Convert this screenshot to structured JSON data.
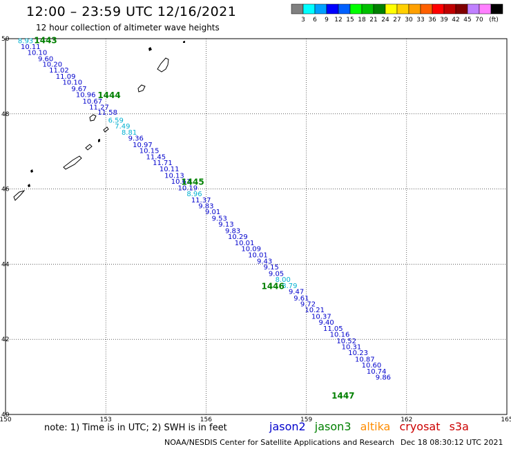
{
  "title": "12:00 – 23:59 UTC 12/16/2021",
  "subtitle": "12 hour collection of altimeter wave heights",
  "colorbar": {
    "colors": [
      "#808080",
      "#00ffff",
      "#00a0ff",
      "#0000ff",
      "#0060ff",
      "#00ff00",
      "#00c000",
      "#008000",
      "#ffff00",
      "#ffd000",
      "#ffa000",
      "#ff6000",
      "#ff0000",
      "#c00000",
      "#800000",
      "#c080ff",
      "#ff80ff",
      "#000000"
    ],
    "labels": [
      "3",
      "6",
      "9",
      "12",
      "15",
      "18",
      "21",
      "24",
      "27",
      "30",
      "33",
      "36",
      "39",
      "42",
      "45",
      "70"
    ],
    "unit": "(ft)"
  },
  "axes": {
    "lon_ticks": [
      "150",
      "153",
      "156",
      "159",
      "162",
      "165"
    ],
    "lat_ticks": [
      "50",
      "48",
      "46",
      "44",
      "42",
      "40"
    ]
  },
  "note": "note:  1) Time is in UTC; 2) SWH is in feet",
  "satellites": [
    {
      "name": "jason2",
      "color": "#0000cc"
    },
    {
      "name": "jason3",
      "color": "#008000"
    },
    {
      "name": "altika",
      "color": "#ff8c00"
    },
    {
      "name": "cryosat",
      "color": "#cc0000"
    },
    {
      "name": "s3a",
      "color": "#cc0000"
    }
  ],
  "credit": "NOAA/NESDIS Center for Satellite Applications and Research",
  "timestamp": "Dec 18 08:30:12 UTC 2021",
  "track_colors": {
    "blue": "#0000cc",
    "cyan": "#00b0d0",
    "green": "#008000"
  },
  "times": [
    {
      "label": "1443",
      "lon": 151.2,
      "lat": 49.95
    },
    {
      "label": "1444",
      "lon": 153.1,
      "lat": 48.49
    },
    {
      "label": "1445",
      "lon": 155.6,
      "lat": 46.19
    },
    {
      "label": "1446",
      "lon": 158.0,
      "lat": 43.41
    },
    {
      "label": "1447",
      "lon": 160.1,
      "lat": 40.5
    }
  ],
  "wave_heights": [
    {
      "v": "8.93",
      "lon": 150.6,
      "lat": 49.95,
      "c": "cyan"
    },
    {
      "v": "10.11",
      "lon": 150.75,
      "lat": 49.8,
      "c": "blue"
    },
    {
      "v": "10.10",
      "lon": 150.95,
      "lat": 49.64,
      "c": "blue"
    },
    {
      "v": "9.60",
      "lon": 151.2,
      "lat": 49.48,
      "c": "blue"
    },
    {
      "v": "10.20",
      "lon": 151.4,
      "lat": 49.33,
      "c": "blue"
    },
    {
      "v": "11.02",
      "lon": 151.6,
      "lat": 49.17,
      "c": "blue"
    },
    {
      "v": "11.09",
      "lon": 151.8,
      "lat": 49.01,
      "c": "blue"
    },
    {
      "v": "10.10",
      "lon": 152.0,
      "lat": 48.85,
      "c": "blue"
    },
    {
      "v": "9.67",
      "lon": 152.2,
      "lat": 48.68,
      "c": "blue"
    },
    {
      "v": "10.96",
      "lon": 152.4,
      "lat": 48.52,
      "c": "blue"
    },
    {
      "v": "10.67",
      "lon": 152.6,
      "lat": 48.35,
      "c": "blue"
    },
    {
      "v": "11.27",
      "lon": 152.8,
      "lat": 48.19,
      "c": "blue"
    },
    {
      "v": "11.58",
      "lon": 153.05,
      "lat": 48.05,
      "c": "blue"
    },
    {
      "v": "6.59",
      "lon": 153.3,
      "lat": 47.84,
      "c": "cyan"
    },
    {
      "v": "7.49",
      "lon": 153.5,
      "lat": 47.68,
      "c": "cyan"
    },
    {
      "v": "8.81",
      "lon": 153.7,
      "lat": 47.52,
      "c": "cyan"
    },
    {
      "v": "9.36",
      "lon": 153.9,
      "lat": 47.36,
      "c": "blue"
    },
    {
      "v": "10.97",
      "lon": 154.1,
      "lat": 47.19,
      "c": "blue"
    },
    {
      "v": "10.15",
      "lon": 154.3,
      "lat": 47.03,
      "c": "blue"
    },
    {
      "v": "11.45",
      "lon": 154.5,
      "lat": 46.87,
      "c": "blue"
    },
    {
      "v": "11.71",
      "lon": 154.7,
      "lat": 46.71,
      "c": "blue"
    },
    {
      "v": "10.11",
      "lon": 154.9,
      "lat": 46.54,
      "c": "blue"
    },
    {
      "v": "10.13",
      "lon": 155.05,
      "lat": 46.37,
      "c": "blue"
    },
    {
      "v": "10.63",
      "lon": 155.25,
      "lat": 46.21,
      "c": "blue"
    },
    {
      "v": "10.19",
      "lon": 155.45,
      "lat": 46.04,
      "c": "blue"
    },
    {
      "v": "8.96",
      "lon": 155.65,
      "lat": 45.88,
      "c": "cyan"
    },
    {
      "v": "11.37",
      "lon": 155.85,
      "lat": 45.72,
      "c": "blue"
    },
    {
      "v": "9.83",
      "lon": 156.0,
      "lat": 45.56,
      "c": "blue"
    },
    {
      "v": "9.01",
      "lon": 156.2,
      "lat": 45.4,
      "c": "blue"
    },
    {
      "v": "9.53",
      "lon": 156.4,
      "lat": 45.23,
      "c": "blue"
    },
    {
      "v": "9.13",
      "lon": 156.6,
      "lat": 45.07,
      "c": "blue"
    },
    {
      "v": "9.83",
      "lon": 156.8,
      "lat": 44.9,
      "c": "blue"
    },
    {
      "v": "10.29",
      "lon": 156.95,
      "lat": 44.74,
      "c": "blue"
    },
    {
      "v": "10.01",
      "lon": 157.15,
      "lat": 44.58,
      "c": "blue"
    },
    {
      "v": "10.09",
      "lon": 157.35,
      "lat": 44.42,
      "c": "blue"
    },
    {
      "v": "10.01",
      "lon": 157.55,
      "lat": 44.26,
      "c": "blue"
    },
    {
      "v": "9.43",
      "lon": 157.75,
      "lat": 44.09,
      "c": "blue"
    },
    {
      "v": "9.15",
      "lon": 157.95,
      "lat": 43.93,
      "c": "blue"
    },
    {
      "v": "9.05",
      "lon": 158.1,
      "lat": 43.76,
      "c": "blue"
    },
    {
      "v": "8.00",
      "lon": 158.3,
      "lat": 43.6,
      "c": "cyan"
    },
    {
      "v": "8.79",
      "lon": 158.5,
      "lat": 43.44,
      "c": "cyan"
    },
    {
      "v": "9.47",
      "lon": 158.7,
      "lat": 43.28,
      "c": "blue"
    },
    {
      "v": "9.61",
      "lon": 158.85,
      "lat": 43.11,
      "c": "blue"
    },
    {
      "v": "9.72",
      "lon": 159.05,
      "lat": 42.95,
      "c": "blue"
    },
    {
      "v": "10.21",
      "lon": 159.25,
      "lat": 42.79,
      "c": "blue"
    },
    {
      "v": "10.37",
      "lon": 159.45,
      "lat": 42.62,
      "c": "blue"
    },
    {
      "v": "9.40",
      "lon": 159.6,
      "lat": 42.46,
      "c": "blue"
    },
    {
      "v": "11.05",
      "lon": 159.8,
      "lat": 42.3,
      "c": "blue"
    },
    {
      "v": "10.16",
      "lon": 160.0,
      "lat": 42.14,
      "c": "blue"
    },
    {
      "v": "10.52",
      "lon": 160.2,
      "lat": 41.97,
      "c": "blue"
    },
    {
      "v": "10.31",
      "lon": 160.35,
      "lat": 41.81,
      "c": "blue"
    },
    {
      "v": "10.23",
      "lon": 160.55,
      "lat": 41.65,
      "c": "blue"
    },
    {
      "v": "10.87",
      "lon": 160.75,
      "lat": 41.48,
      "c": "blue"
    },
    {
      "v": "10.60",
      "lon": 160.95,
      "lat": 41.32,
      "c": "blue"
    },
    {
      "v": "10.74",
      "lon": 161.1,
      "lat": 41.16,
      "c": "blue"
    },
    {
      "v": "9.86",
      "lon": 161.3,
      "lat": 41.0,
      "c": "blue"
    }
  ]
}
